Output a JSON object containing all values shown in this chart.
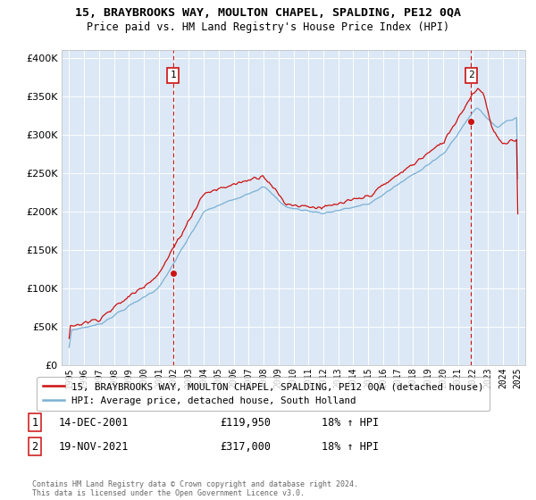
{
  "title": "15, BRAYBROOKS WAY, MOULTON CHAPEL, SPALDING, PE12 0QA",
  "subtitle": "Price paid vs. HM Land Registry's House Price Index (HPI)",
  "legend_line1": "15, BRAYBROOKS WAY, MOULTON CHAPEL, SPALDING, PE12 0QA (detached house)",
  "legend_line2": "HPI: Average price, detached house, South Holland",
  "footnote": "Contains HM Land Registry data © Crown copyright and database right 2024.\nThis data is licensed under the Open Government Licence v3.0.",
  "marker1_label": "1",
  "marker1_date": "14-DEC-2001",
  "marker1_price": "£119,950",
  "marker1_hpi": "18% ↑ HPI",
  "marker1_x": 2001.95,
  "marker1_y": 119950,
  "marker2_label": "2",
  "marker2_date": "19-NOV-2021",
  "marker2_price": "£317,000",
  "marker2_hpi": "18% ↑ HPI",
  "marker2_x": 2021.88,
  "marker2_y": 317000,
  "hpi_color": "#7ab0d4",
  "price_color": "#cc1111",
  "marker_color": "#cc1111",
  "bg_color": "#dce8f5",
  "grid_color": "#ffffff",
  "ylim": [
    0,
    410000
  ],
  "xlim": [
    1994.5,
    2025.5
  ]
}
